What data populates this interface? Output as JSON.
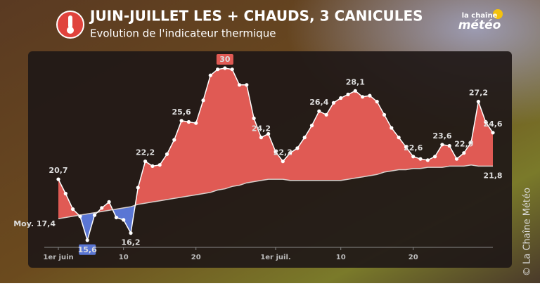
{
  "header": {
    "title": "JUIN-JUILLET LES + CHAUDS, 3 CANICULES",
    "subtitle": "Evolution de l'indicateur thermique",
    "logo_top": "la chaîne",
    "logo_bottom": "météo",
    "copyright": "© La Chaîne Météo"
  },
  "chart_data": {
    "type": "line",
    "title": "JUIN-JUILLET LES + CHAUDS, 3 CANICULES",
    "categories": [
      "1er juin",
      null,
      null,
      null,
      null,
      null,
      null,
      null,
      null,
      "10",
      null,
      null,
      null,
      null,
      null,
      null,
      null,
      null,
      null,
      "20",
      null,
      null,
      null,
      null,
      null,
      null,
      null,
      null,
      null,
      null,
      "1er juil.",
      null,
      null,
      null,
      null,
      null,
      null,
      null,
      null,
      "10",
      null,
      null,
      null,
      null,
      null,
      null,
      null,
      null,
      null,
      "20",
      null,
      null,
      null,
      null,
      null,
      null,
      null,
      null,
      null,
      null,
      null
    ],
    "ylim": [
      15,
      31
    ],
    "series": [
      {
        "name": "Indicateur thermique",
        "color": "#ffffff",
        "above_color": "#e05a54",
        "below_color": "#5a76d4",
        "values": [
          20.7,
          19.5,
          18.2,
          17.6,
          15.6,
          17.7,
          18.3,
          18.8,
          17.5,
          17.3,
          16.2,
          20.0,
          22.2,
          21.8,
          21.9,
          22.8,
          24.0,
          25.6,
          25.5,
          25.4,
          27.3,
          29.4,
          29.9,
          30,
          29.9,
          28.6,
          28.6,
          25.8,
          24.2,
          24.5,
          23.0,
          22.2,
          22.9,
          23.3,
          24.2,
          25.2,
          26.4,
          26.1,
          27.1,
          27.5,
          27.8,
          28.1,
          27.6,
          27.7,
          27.2,
          26.1,
          25.0,
          24.2,
          23.4,
          22.6,
          22.4,
          22.3,
          22.6,
          23.6,
          23.5,
          22.4,
          22.9,
          23.8,
          27.2,
          25.5,
          24.6
        ],
        "value_labels": [
          "20,7",
          null,
          null,
          null,
          "15,6",
          null,
          null,
          null,
          null,
          null,
          "16,2",
          null,
          "22,2",
          null,
          null,
          null,
          null,
          "25,6",
          null,
          null,
          null,
          null,
          null,
          "30",
          null,
          null,
          null,
          null,
          "24,2",
          null,
          null,
          "22,2",
          null,
          null,
          null,
          null,
          "26,4",
          null,
          null,
          null,
          null,
          "28,1",
          null,
          null,
          null,
          null,
          null,
          null,
          null,
          "22,6",
          null,
          null,
          null,
          "23,6",
          null,
          null,
          "22,9",
          null,
          "27,2",
          null,
          "24,6"
        ]
      },
      {
        "name": "Moyenne",
        "color": "#d8d0cc",
        "values": [
          17.4,
          17.5,
          17.6,
          17.7,
          17.8,
          17.9,
          18.0,
          18.1,
          18.2,
          18.3,
          18.4,
          18.6,
          18.7,
          18.8,
          18.9,
          19.0,
          19.1,
          19.2,
          19.3,
          19.4,
          19.5,
          19.6,
          19.8,
          19.9,
          20.1,
          20.2,
          20.4,
          20.5,
          20.6,
          20.7,
          20.7,
          20.7,
          20.6,
          20.6,
          20.6,
          20.6,
          20.6,
          20.6,
          20.6,
          20.6,
          20.7,
          20.8,
          20.9,
          21.0,
          21.1,
          21.3,
          21.4,
          21.5,
          21.5,
          21.6,
          21.6,
          21.7,
          21.7,
          21.7,
          21.8,
          21.8,
          21.8,
          21.9,
          21.8,
          21.8,
          21.8
        ],
        "value_labels": [
          "Moy. 17,4",
          null,
          null,
          null,
          null,
          null,
          null,
          null,
          null,
          null,
          null,
          null,
          null,
          null,
          null,
          null,
          null,
          null,
          null,
          null,
          null,
          null,
          null,
          null,
          null,
          null,
          null,
          null,
          null,
          null,
          null,
          null,
          null,
          null,
          null,
          null,
          null,
          null,
          null,
          null,
          null,
          null,
          null,
          null,
          null,
          null,
          null,
          null,
          null,
          null,
          null,
          null,
          null,
          null,
          null,
          null,
          null,
          null,
          null,
          null,
          "21,8"
        ]
      }
    ]
  }
}
